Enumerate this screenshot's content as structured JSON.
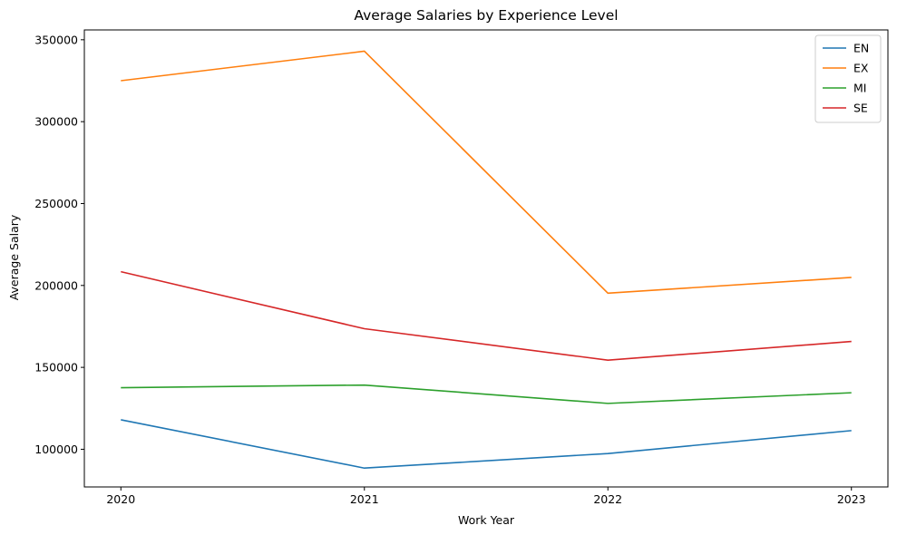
{
  "chart_data": {
    "type": "line",
    "title": "Average Salaries by Experience Level",
    "xlabel": "Work Year",
    "ylabel": "Average Salary",
    "x": [
      2020,
      2021,
      2022,
      2023
    ],
    "x_tick_labels": [
      "2020",
      "2021",
      "2022",
      "2023"
    ],
    "y_ticks": [
      100000,
      150000,
      200000,
      250000,
      300000,
      350000
    ],
    "y_tick_labels": [
      "100000",
      "150000",
      "200000",
      "250000",
      "300000",
      "350000"
    ],
    "ylim": [
      77000,
      356000
    ],
    "grid": false,
    "legend_position": "top-right",
    "series": [
      {
        "name": "EN",
        "color": "#1f77b4",
        "values": [
          118000,
          88500,
          97400,
          111400
        ]
      },
      {
        "name": "EX",
        "color": "#ff7f0e",
        "values": [
          325000,
          343000,
          195300,
          204900
        ]
      },
      {
        "name": "MI",
        "color": "#2ca02c",
        "values": [
          137600,
          139200,
          128000,
          134500
        ]
      },
      {
        "name": "SE",
        "color": "#d62728",
        "values": [
          208400,
          173600,
          154400,
          165800
        ]
      }
    ]
  }
}
